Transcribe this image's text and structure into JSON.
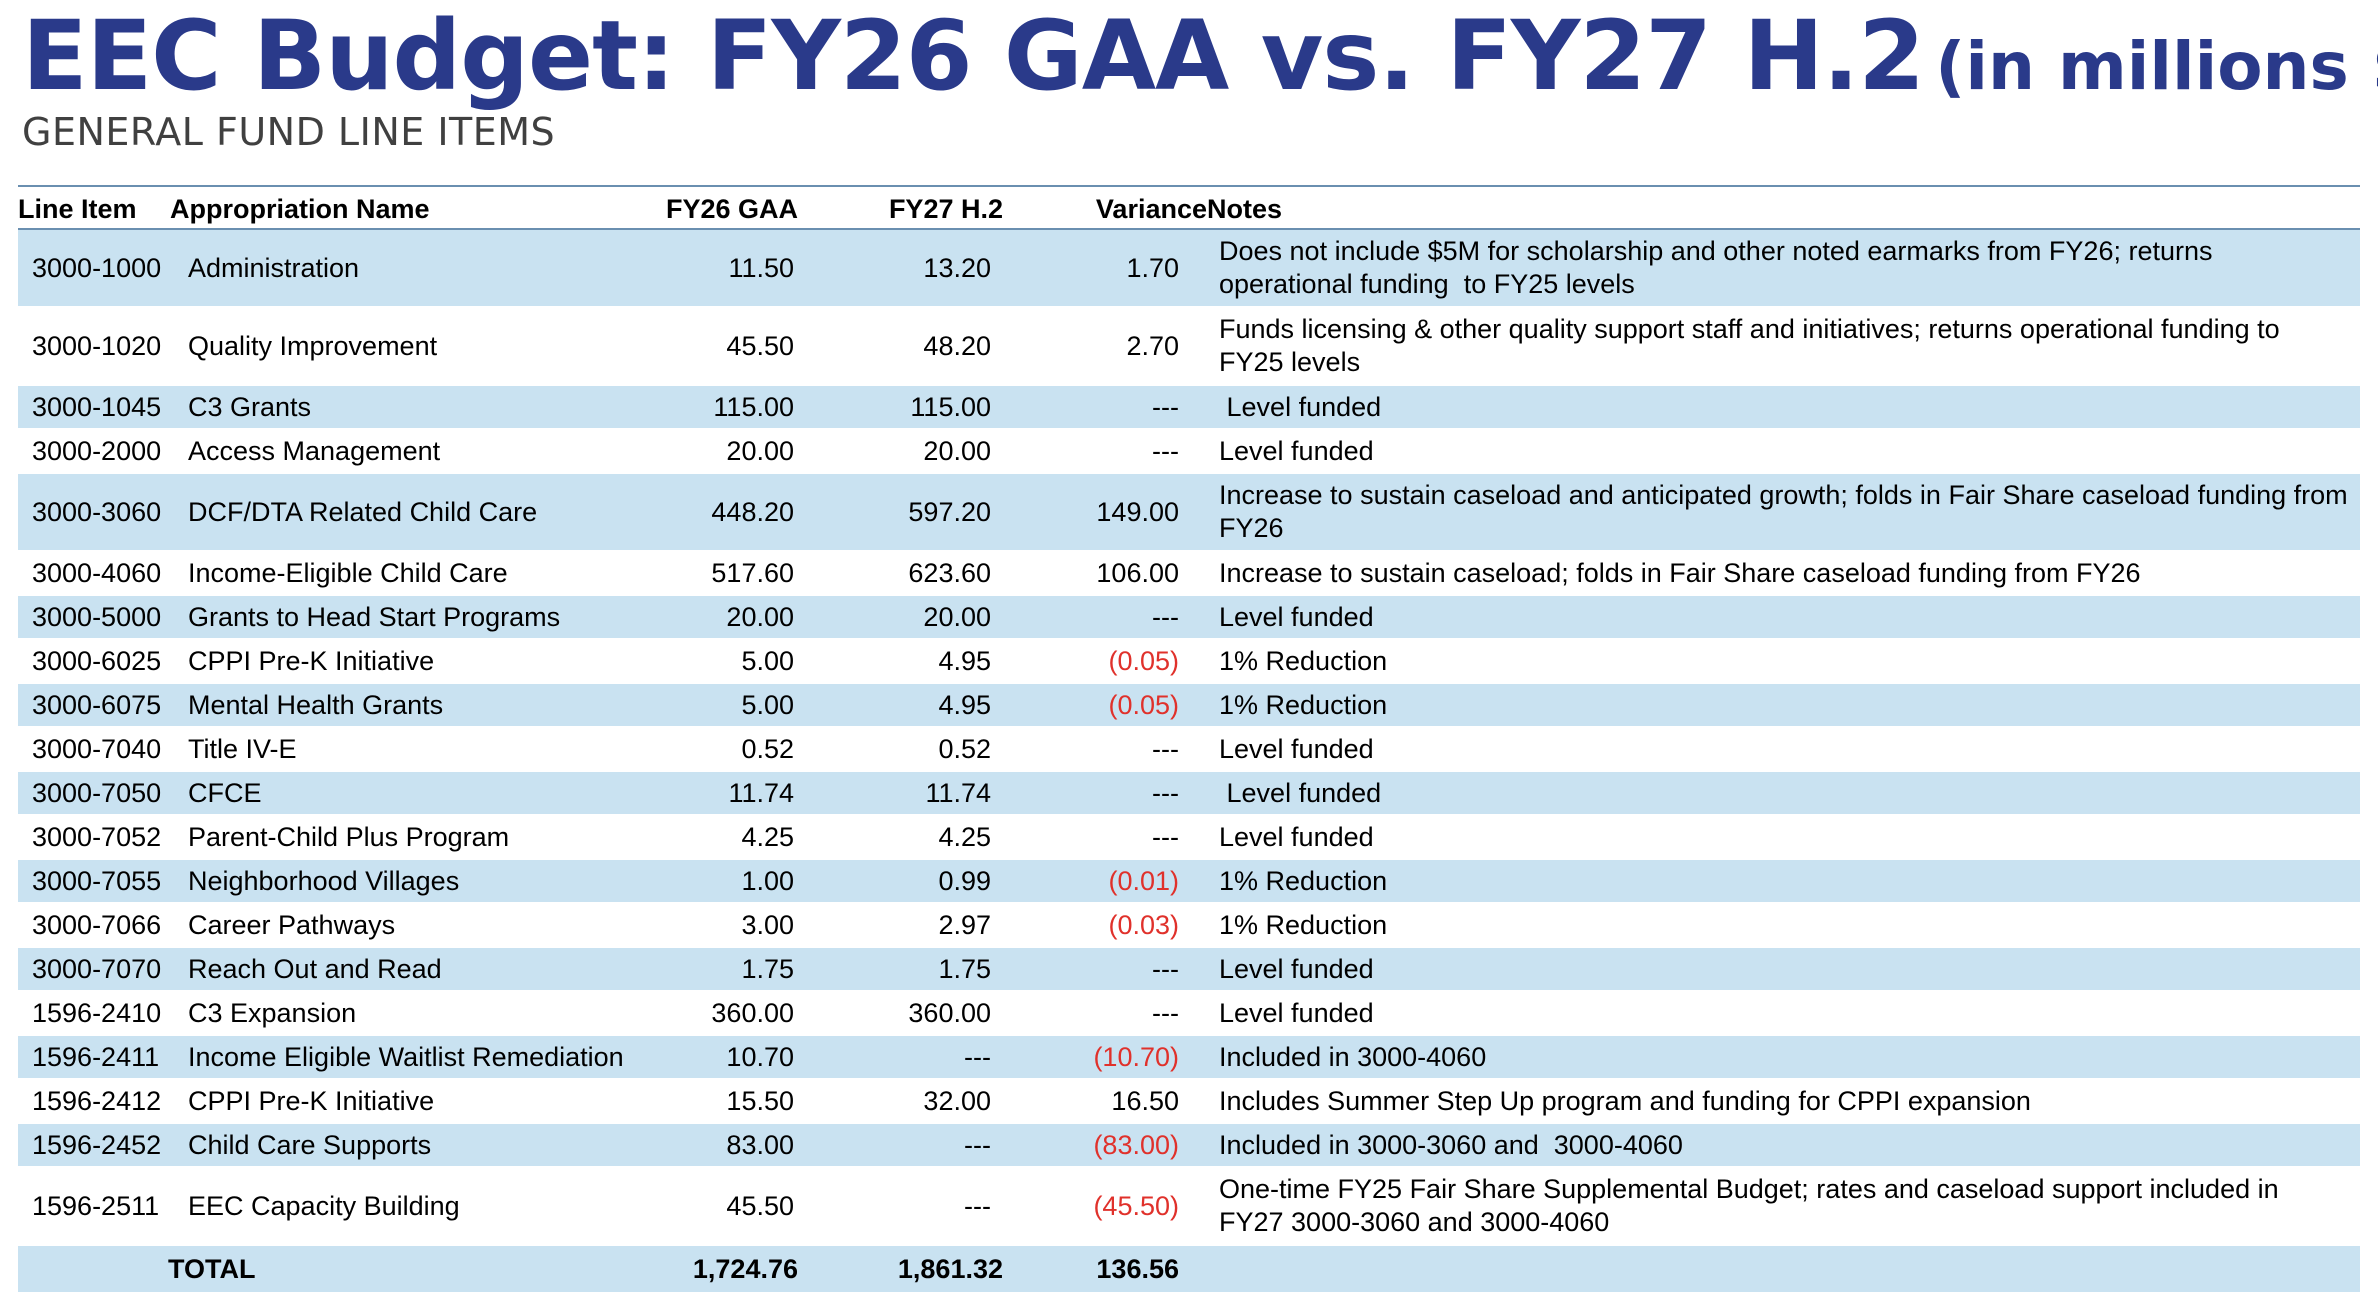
{
  "title": {
    "main": "EEC Budget: FY26 GAA vs. FY27 H.2",
    "sub": "(in millions $)"
  },
  "subtitle": "GENERAL FUND LINE ITEMS",
  "table": {
    "headers": {
      "line_item": "Line Item",
      "appropriation_name": "Appropriation Name",
      "fy26": "FY26 GAA",
      "fy27": "FY27 H.2",
      "variance": "Variance",
      "notes": "Notes"
    },
    "rows": [
      {
        "line": "3000-1000",
        "name": "Administration",
        "fy26": "11.50",
        "fy27": "13.20",
        "variance": "1.70",
        "notes": "Does not include $5M for scholarship and other noted earmarks from FY26; returns operational funding  to FY25 levels"
      },
      {
        "line": "3000-1020",
        "name": "Quality Improvement",
        "fy26": "45.50",
        "fy27": "48.20",
        "variance": "2.70",
        "notes": "Funds licensing & other quality support staff and initiatives; returns operational funding to FY25 levels"
      },
      {
        "line": "3000-1045",
        "name": "C3 Grants",
        "fy26": "115.00",
        "fy27": "115.00",
        "variance": "---",
        "notes": " Level funded"
      },
      {
        "line": "3000-2000",
        "name": "Access Management",
        "fy26": "20.00",
        "fy27": "20.00",
        "variance": "---",
        "notes": "Level funded"
      },
      {
        "line": "3000-3060",
        "name": "DCF/DTA Related Child Care",
        "fy26": "448.20",
        "fy27": "597.20",
        "variance": "149.00",
        "notes": "Increase to sustain caseload and anticipated growth; folds in Fair Share caseload funding from FY26"
      },
      {
        "line": "3000-4060",
        "name": "Income-Eligible Child Care",
        "fy26": "517.60",
        "fy27": "623.60",
        "variance": "106.00",
        "notes": "Increase to sustain caseload; folds in Fair Share caseload funding from FY26"
      },
      {
        "line": "3000-5000",
        "name": "Grants to Head Start Programs",
        "fy26": "20.00",
        "fy27": "20.00",
        "variance": "---",
        "notes": "Level funded"
      },
      {
        "line": "3000-6025",
        "name": "CPPI Pre-K Initiative",
        "fy26": "5.00",
        "fy27": "4.95",
        "variance": "(0.05)",
        "notes": "1% Reduction"
      },
      {
        "line": "3000-6075",
        "name": "Mental Health Grants",
        "fy26": "5.00",
        "fy27": "4.95",
        "variance": "(0.05)",
        "notes": "1% Reduction"
      },
      {
        "line": "3000-7040",
        "name": "Title IV-E",
        "fy26": "0.52",
        "fy27": "0.52",
        "variance": "---",
        "notes": "Level funded"
      },
      {
        "line": "3000-7050",
        "name": "CFCE",
        "fy26": "11.74",
        "fy27": "11.74",
        "variance": "---",
        "notes": " Level funded"
      },
      {
        "line": "3000-7052",
        "name": "Parent-Child Plus Program",
        "fy26": "4.25",
        "fy27": "4.25",
        "variance": "---",
        "notes": "Level funded"
      },
      {
        "line": "3000-7055",
        "name": "Neighborhood Villages",
        "fy26": "1.00",
        "fy27": "0.99",
        "variance": "(0.01)",
        "notes": "1% Reduction"
      },
      {
        "line": "3000-7066",
        "name": "Career Pathways",
        "fy26": "3.00",
        "fy27": "2.97",
        "variance": "(0.03)",
        "notes": "1% Reduction"
      },
      {
        "line": "3000-7070",
        "name": "Reach Out and Read",
        "fy26": "1.75",
        "fy27": "1.75",
        "variance": "---",
        "notes": "Level funded"
      },
      {
        "line": "1596-2410",
        "name": "C3 Expansion",
        "fy26": "360.00",
        "fy27": "360.00",
        "variance": "---",
        "notes": "Level funded"
      },
      {
        "line": "1596-2411",
        "name": "Income Eligible Waitlist Remediation",
        "fy26": "10.70",
        "fy27": "---",
        "variance": "(10.70)",
        "notes": "Included in 3000-4060"
      },
      {
        "line": "1596-2412",
        "name": "CPPI Pre-K Initiative",
        "fy26": "15.50",
        "fy27": "32.00",
        "variance": "16.50",
        "notes": "Includes Summer Step Up program and funding for CPPI expansion"
      },
      {
        "line": "1596-2452",
        "name": "Child Care Supports",
        "fy26": "83.00",
        "fy27": "---",
        "variance": "(83.00)",
        "notes": "Included in 3000-3060 and  3000-4060"
      },
      {
        "line": "1596-2511",
        "name": "EEC Capacity Building",
        "fy26": "45.50",
        "fy27": "---",
        "variance": "(45.50)",
        "notes": "One-time FY25 Fair Share Supplemental Budget; rates and caseload support included in FY27 3000-3060 and 3000-4060"
      }
    ],
    "total": {
      "label": "TOTAL",
      "fy26": "1,724.76",
      "fy27": "1,861.32",
      "variance": "136.56"
    }
  },
  "colors": {
    "title": "#2a3a8a",
    "row_shade": "#c9e2f1",
    "negative": "#e0312b",
    "rule": "#6a8fb0"
  }
}
